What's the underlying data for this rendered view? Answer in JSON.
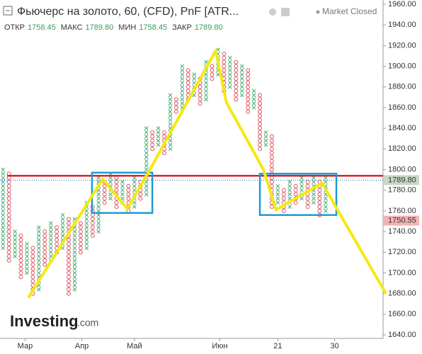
{
  "header": {
    "title": "Фьючерс на золото, 60, (CFD), PnF [ATR...",
    "status": "Market Closed",
    "ohlc": [
      {
        "label": "ОТКР",
        "value": "1758.45"
      },
      {
        "label": "МАКС",
        "value": "1789.80"
      },
      {
        "label": "МИН",
        "value": "1758.45"
      },
      {
        "label": "ЗАКР",
        "value": "1789.80"
      }
    ],
    "logo": "Investing",
    "logo_suffix": ".com"
  },
  "chart_data": {
    "type": "pnf",
    "box_size": 4,
    "up_color": "#4caf7d",
    "down_color": "#e0646e",
    "xlim": [
      -0.5,
      63.5
    ],
    "ylim": [
      1640,
      1960
    ],
    "xticks": [
      {
        "value": 3.7,
        "label": "Мар"
      },
      {
        "value": 13.2,
        "label": "Апр"
      },
      {
        "value": 22,
        "label": "Май"
      },
      {
        "value": 36.3,
        "label": "Июн"
      },
      {
        "value": 46,
        "label": "21"
      },
      {
        "value": 55.5,
        "label": "30"
      }
    ],
    "yticks": [
      {
        "value": 1640,
        "label": "1640.00"
      },
      {
        "value": 1660,
        "label": "1660.00"
      },
      {
        "value": 1680,
        "label": "1680.00"
      },
      {
        "value": 1700,
        "label": "1700.00"
      },
      {
        "value": 1720,
        "label": "1720.00"
      },
      {
        "value": 1740,
        "label": "1740.00"
      },
      {
        "value": 1760,
        "label": "1760.00"
      },
      {
        "value": 1780,
        "label": "1780.00"
      },
      {
        "value": 1800,
        "label": "1800.00"
      },
      {
        "value": 1820,
        "label": "1820.00"
      },
      {
        "value": 1840,
        "label": "1840.00"
      },
      {
        "value": 1860,
        "label": "1860.00"
      },
      {
        "value": 1880,
        "label": "1880.00"
      },
      {
        "value": 1900,
        "label": "1900.00"
      },
      {
        "value": 1920,
        "label": "1920.00"
      },
      {
        "value": 1940,
        "label": "1940.00"
      },
      {
        "value": 1960,
        "label": "1960.00"
      }
    ],
    "columns": [
      {
        "kind": "x",
        "low": 1724,
        "high": 1800
      },
      {
        "kind": "o",
        "low": 1712,
        "high": 1796
      },
      {
        "kind": "x",
        "low": 1716,
        "high": 1740
      },
      {
        "kind": "o",
        "low": 1696,
        "high": 1736
      },
      {
        "kind": "x",
        "low": 1700,
        "high": 1728
      },
      {
        "kind": "o",
        "low": 1680,
        "high": 1724
      },
      {
        "kind": "x",
        "low": 1684,
        "high": 1744
      },
      {
        "kind": "o",
        "low": 1708,
        "high": 1740
      },
      {
        "kind": "x",
        "low": 1712,
        "high": 1748
      },
      {
        "kind": "o",
        "low": 1720,
        "high": 1744
      },
      {
        "kind": "x",
        "low": 1724,
        "high": 1756
      },
      {
        "kind": "o",
        "low": 1680,
        "high": 1752
      },
      {
        "kind": "x",
        "low": 1684,
        "high": 1752
      },
      {
        "kind": "o",
        "low": 1720,
        "high": 1748
      },
      {
        "kind": "x",
        "low": 1724,
        "high": 1768
      },
      {
        "kind": "o",
        "low": 1736,
        "high": 1764
      },
      {
        "kind": "x",
        "low": 1740,
        "high": 1792
      },
      {
        "kind": "o",
        "low": 1768,
        "high": 1788
      },
      {
        "kind": "x",
        "low": 1772,
        "high": 1796
      },
      {
        "kind": "o",
        "low": 1764,
        "high": 1792
      },
      {
        "kind": "x",
        "low": 1768,
        "high": 1788
      },
      {
        "kind": "o",
        "low": 1760,
        "high": 1784
      },
      {
        "kind": "x",
        "low": 1764,
        "high": 1792
      },
      {
        "kind": "o",
        "low": 1772,
        "high": 1788
      },
      {
        "kind": "x",
        "low": 1776,
        "high": 1840
      },
      {
        "kind": "o",
        "low": 1820,
        "high": 1836
      },
      {
        "kind": "x",
        "low": 1824,
        "high": 1840
      },
      {
        "kind": "o",
        "low": 1816,
        "high": 1836
      },
      {
        "kind": "x",
        "low": 1820,
        "high": 1872
      },
      {
        "kind": "o",
        "low": 1856,
        "high": 1868
      },
      {
        "kind": "x",
        "low": 1860,
        "high": 1900
      },
      {
        "kind": "o",
        "low": 1868,
        "high": 1896
      },
      {
        "kind": "x",
        "low": 1872,
        "high": 1892
      },
      {
        "kind": "o",
        "low": 1864,
        "high": 1888
      },
      {
        "kind": "x",
        "low": 1868,
        "high": 1904
      },
      {
        "kind": "o",
        "low": 1888,
        "high": 1900
      },
      {
        "kind": "x",
        "low": 1892,
        "high": 1916
      },
      {
        "kind": "o",
        "low": 1876,
        "high": 1912
      },
      {
        "kind": "x",
        "low": 1880,
        "high": 1908
      },
      {
        "kind": "o",
        "low": 1868,
        "high": 1904
      },
      {
        "kind": "x",
        "low": 1872,
        "high": 1900
      },
      {
        "kind": "o",
        "low": 1856,
        "high": 1896
      },
      {
        "kind": "x",
        "low": 1860,
        "high": 1876
      },
      {
        "kind": "o",
        "low": 1820,
        "high": 1872
      },
      {
        "kind": "x",
        "low": 1824,
        "high": 1836
      },
      {
        "kind": "o",
        "low": 1764,
        "high": 1832
      },
      {
        "kind": "x",
        "low": 1768,
        "high": 1784
      },
      {
        "kind": "o",
        "low": 1760,
        "high": 1780
      },
      {
        "kind": "x",
        "low": 1764,
        "high": 1788
      },
      {
        "kind": "o",
        "low": 1768,
        "high": 1784
      },
      {
        "kind": "x",
        "low": 1772,
        "high": 1792
      },
      {
        "kind": "o",
        "low": 1764,
        "high": 1788
      },
      {
        "kind": "x",
        "low": 1768,
        "high": 1792
      },
      {
        "kind": "o",
        "low": 1756,
        "high": 1788
      },
      {
        "kind": "x",
        "low": 1760,
        "high": 1792
      }
    ],
    "hline": {
      "value": 1794,
      "color": "#d9262c"
    },
    "last_line": {
      "value": 1789.8,
      "color": "#3060b0"
    },
    "price_labels": [
      {
        "value": 1789.8,
        "label": "1789.80",
        "color": "#c9d7c6"
      },
      {
        "value": 1750.55,
        "label": "1750.55",
        "color": "#f3b3b5"
      }
    ],
    "boxes": [
      {
        "x0": 14.9,
        "x1": 25,
        "y0": 1758,
        "y1": 1797
      },
      {
        "x0": 43,
        "x1": 55.8,
        "y0": 1756,
        "y1": 1796
      }
    ],
    "box_color": "#1e9ad6",
    "trend": {
      "color": "#f5e813",
      "x": [
        4.24,
        16.7,
        20.8,
        24.6,
        35.6,
        37.4,
        43.6,
        45.7,
        53.4,
        64.1
      ],
      "y": [
        1676,
        1791,
        1762,
        1800,
        1915,
        1865,
        1800,
        1761,
        1787,
        1680
      ]
    }
  }
}
